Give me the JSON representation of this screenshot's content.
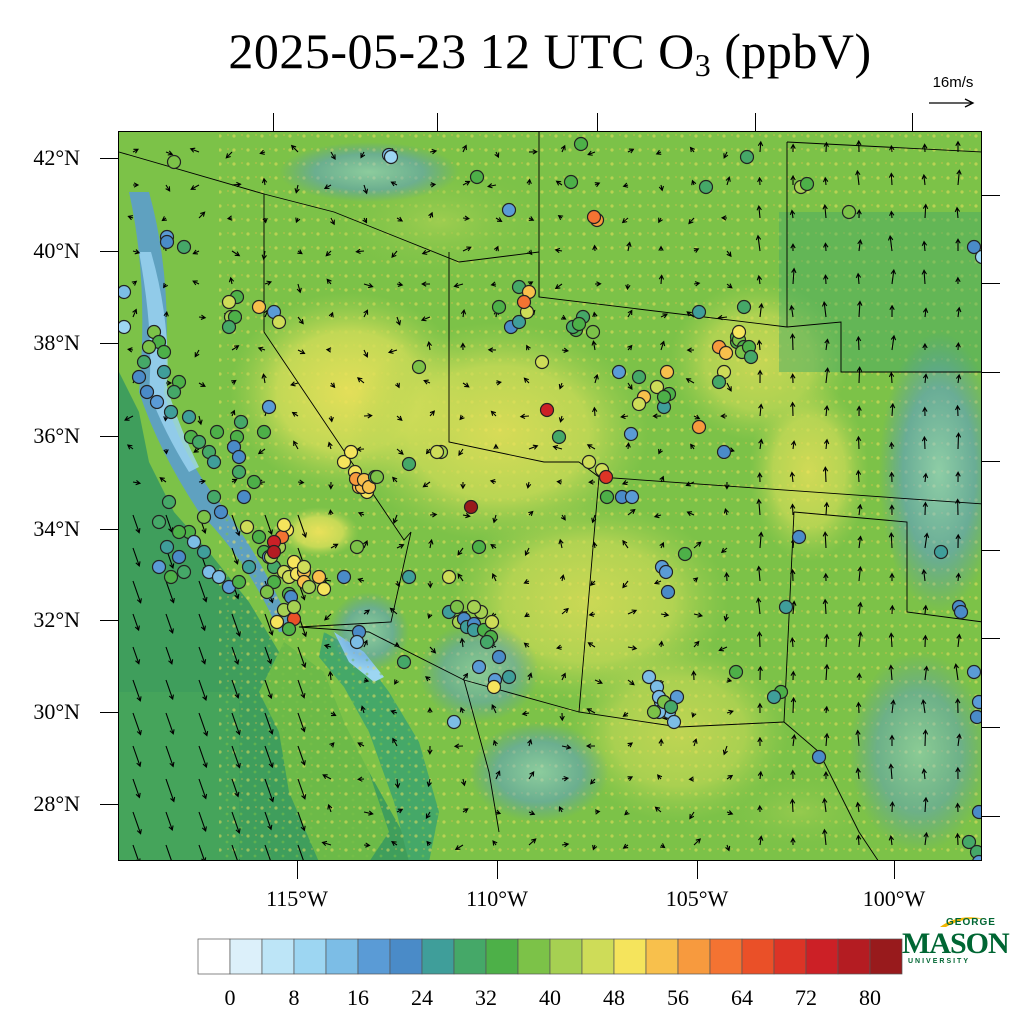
{
  "title": {
    "prefix": "2025-05-23 12 UTC O",
    "subscript": "3",
    "suffix": " (ppbV)"
  },
  "wind_reference": {
    "label": "16m/s"
  },
  "axes": {
    "latitude_labels": [
      "42°N",
      "40°N",
      "38°N",
      "36°N",
      "34°N",
      "32°N",
      "30°N",
      "28°N"
    ],
    "longitude_labels": [
      "115°W",
      "110°W",
      "105°W",
      "100°W"
    ]
  },
  "colorbar": {
    "labels": [
      "0",
      "8",
      "16",
      "24",
      "32",
      "40",
      "48",
      "56",
      "64",
      "72",
      "80"
    ],
    "colors": [
      "#ffffff",
      "#dcf0fa",
      "#bde5f7",
      "#9dd6f2",
      "#7cbde6",
      "#5a9bd6",
      "#4a8bc8",
      "#3f9e9a",
      "#45a868",
      "#4db048",
      "#7cc248",
      "#a6d052",
      "#cedc58",
      "#f5e45c",
      "#f8c04c",
      "#f79a3e",
      "#f47332",
      "#ea5028",
      "#dc3426",
      "#cc2026",
      "#b41c22",
      "#981a1c"
    ]
  },
  "logo": {
    "top": "GEORGE",
    "main": "MASON",
    "bottom": "UNIVERSITY"
  },
  "colors": {
    "frame": "#000000",
    "ocean": "#3f9e5c",
    "text": "#000000",
    "brand_green": "#006633",
    "brand_gold": "#f2b705"
  }
}
